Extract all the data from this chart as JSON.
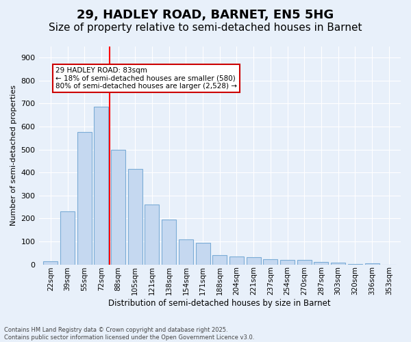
{
  "title1": "29, HADLEY ROAD, BARNET, EN5 5HG",
  "title2": "Size of property relative to semi-detached houses in Barnet",
  "xlabel": "Distribution of semi-detached houses by size in Barnet",
  "ylabel": "Number of semi-detached properties",
  "categories": [
    "22sqm",
    "39sqm",
    "55sqm",
    "72sqm",
    "88sqm",
    "105sqm",
    "121sqm",
    "138sqm",
    "154sqm",
    "171sqm",
    "188sqm",
    "204sqm",
    "221sqm",
    "237sqm",
    "254sqm",
    "270sqm",
    "287sqm",
    "303sqm",
    "320sqm",
    "336sqm",
    "353sqm"
  ],
  "bar_values": [
    15,
    230,
    575,
    685,
    500,
    415,
    260,
    195,
    110,
    95,
    40,
    35,
    30,
    22,
    20,
    18,
    10,
    8,
    2,
    5,
    0
  ],
  "bar_color": "#c5d8f0",
  "bar_edge_color": "#7bacd6",
  "red_line_x": 3.5,
  "annotation_line1": "29 HADLEY ROAD: 83sqm",
  "annotation_line2": "← 18% of semi-detached houses are smaller (580)",
  "annotation_line3": "80% of semi-detached houses are larger (2,528) →",
  "annotation_box_color": "#ffffff",
  "annotation_box_edge": "#cc0000",
  "ylim": [
    0,
    950
  ],
  "yticks": [
    0,
    100,
    200,
    300,
    400,
    500,
    600,
    700,
    800,
    900
  ],
  "footer1": "Contains HM Land Registry data © Crown copyright and database right 2025.",
  "footer2": "Contains public sector information licensed under the Open Government Licence v3.0.",
  "background_color": "#e8f0fa",
  "plot_bg_color": "#e8f0fa",
  "title1_fontsize": 13,
  "title2_fontsize": 11
}
